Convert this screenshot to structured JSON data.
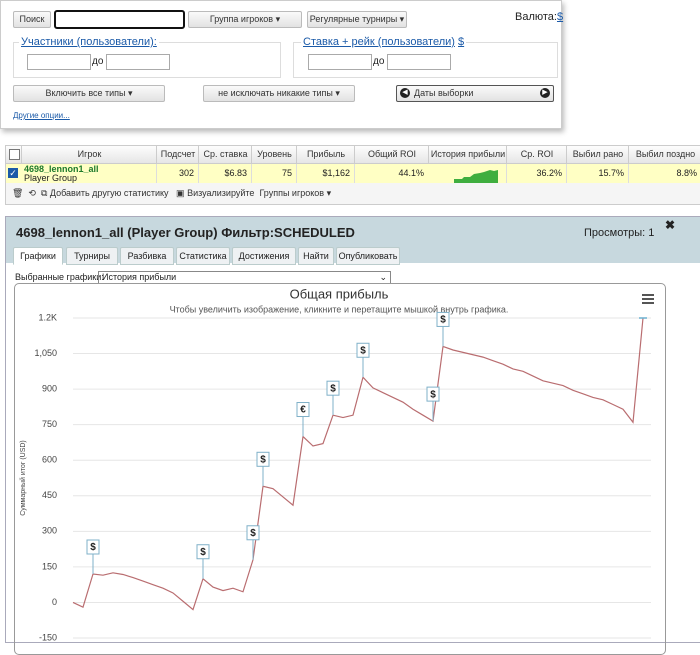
{
  "filters": {
    "search_button": "Поиск",
    "player_group": "Группа игроков",
    "tournaments": "Регулярные турниры",
    "currency_label": "Валюта:",
    "currency": "$",
    "participants_label": "Участники (пользователи):",
    "to_1": "до",
    "stake_label": "Ставка + рейк (пользователи)",
    "stake_currency": "$",
    "to_2": "до",
    "include_types": "Включить все типы",
    "exclude_types": "не исключать никакие типы",
    "dates": "Даты выборки",
    "more_options": "Другие опции..."
  },
  "table": {
    "headers": [
      "Игрок",
      "Подсчет",
      "Ср. ставка",
      "Уровень",
      "Прибыль",
      "Общий ROI",
      "История прибыли",
      "Ср. ROI",
      "Выбил рано",
      "Выбил поздно"
    ],
    "row": {
      "player": "4698_lennon1_all",
      "group": "Player Group",
      "cells": [
        "302",
        "$6.83",
        "75",
        "$1,162",
        "44.1%",
        "36.2%",
        "15.7%",
        "8.8%"
      ]
    },
    "toolbar": [
      "Добавить другую статистику",
      "Визуализируйте",
      "Группы игроков"
    ]
  },
  "panel": {
    "title": "4698_lennon1_all (Player Group) Фильтр:SCHEDULED",
    "views": "Просмотры: 1",
    "tabs": [
      "Графики",
      "Турниры",
      "Разбивка",
      "Статистика",
      "Достижения",
      "Найти",
      "Опубликовать"
    ],
    "select_label": "Выбранные графики:",
    "select_value": "История прибыли"
  },
  "chart_data": {
    "type": "line",
    "title": "Общая прибыль",
    "subtitle": "Чтобы увеличить изображение, кликните и перетащите мышкой внутрь графика.",
    "y_label": "Суммарный итог (USD)",
    "color": "#b96d70",
    "grid": true,
    "ylim": [
      -150,
      1200
    ],
    "yticks": [
      -150,
      0,
      150,
      300,
      450,
      600,
      750,
      900,
      {
        "value": 1050,
        "label": "1,050"
      },
      {
        "value": 1200,
        "label": "1.2K"
      }
    ],
    "values": [
      0,
      -20,
      120,
      115,
      125,
      118,
      105,
      90,
      75,
      60,
      40,
      5,
      -30,
      100,
      65,
      50,
      60,
      45,
      180,
      490,
      480,
      445,
      410,
      700,
      660,
      670,
      790,
      780,
      790,
      950,
      905,
      885,
      865,
      845,
      815,
      790,
      765,
      1080,
      1065,
      1055,
      1045,
      1035,
      1020,
      1005,
      985,
      975,
      955,
      935,
      925,
      915,
      895,
      880,
      865,
      855,
      835,
      815,
      760,
      1200
    ],
    "annotations": [
      {
        "index": 2,
        "text": "$"
      },
      {
        "index": 13,
        "text": "$"
      },
      {
        "index": 18,
        "text": "$"
      },
      {
        "index": 19,
        "text": "$"
      },
      {
        "index": 23,
        "text": "€"
      },
      {
        "index": 26,
        "text": "$"
      },
      {
        "index": 29,
        "text": "$"
      },
      {
        "index": 36,
        "text": "$"
      },
      {
        "index": 37,
        "text": "$"
      }
    ]
  }
}
